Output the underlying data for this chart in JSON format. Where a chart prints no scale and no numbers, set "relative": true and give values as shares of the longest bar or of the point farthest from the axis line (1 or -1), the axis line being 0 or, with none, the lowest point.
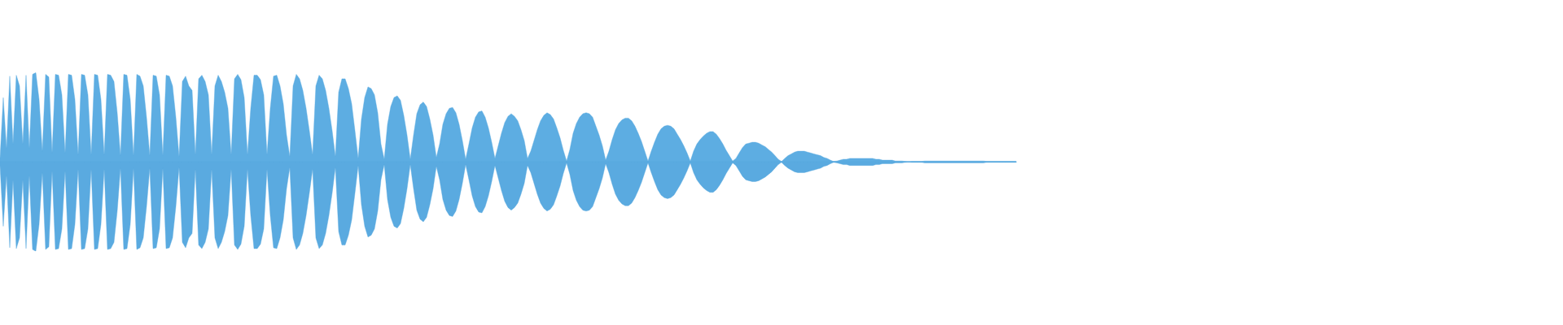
{
  "chart_data": {
    "type": "area",
    "relative": true,
    "categories": [
      null,
      null,
      null,
      null,
      null,
      null,
      null,
      null,
      null,
      null,
      null,
      null,
      null,
      null,
      null,
      null,
      null,
      null,
      null,
      null,
      null,
      null,
      null,
      null,
      null,
      null,
      null,
      null,
      null,
      null,
      null,
      null,
      null,
      null,
      null,
      null,
      null,
      null,
      null,
      null,
      null,
      null,
      null,
      null,
      null,
      null,
      null,
      null,
      null,
      null,
      null,
      null,
      null,
      null,
      null,
      null,
      null,
      null,
      null,
      null,
      null,
      null,
      null,
      null,
      null,
      null,
      null,
      null,
      null,
      null,
      null,
      null,
      null,
      null,
      null,
      null,
      null,
      null,
      null,
      null,
      null,
      null,
      null,
      null,
      null,
      null,
      null,
      null,
      null,
      null,
      null,
      null,
      null,
      null,
      null,
      null,
      null,
      null,
      null,
      null,
      null,
      null,
      null,
      null,
      null,
      null,
      null,
      null,
      null,
      null,
      null,
      null,
      null,
      null,
      null,
      null,
      null,
      null,
      null,
      null,
      null,
      null,
      null,
      null,
      null,
      null,
      null,
      null,
      null,
      null,
      null,
      null,
      null,
      null,
      null,
      null,
      null,
      null,
      null,
      null,
      null,
      null,
      null,
      null,
      null,
      null,
      null,
      null,
      null,
      null,
      null,
      null,
      null,
      null,
      null,
      null,
      null,
      null,
      null,
      null,
      null,
      null,
      null,
      null,
      null,
      null,
      null,
      null,
      null,
      null,
      null,
      null,
      null,
      null,
      null,
      null,
      null,
      null,
      null,
      null,
      null,
      null,
      null,
      null,
      null,
      null,
      null,
      null,
      null,
      null,
      null,
      null,
      null,
      null,
      null,
      null,
      null,
      null,
      null,
      null,
      null,
      null,
      null,
      null,
      null,
      null,
      null,
      null,
      null,
      null,
      null,
      null,
      null,
      null,
      null,
      null,
      null,
      null,
      null,
      null,
      null,
      null,
      null,
      null,
      null,
      null,
      null,
      null,
      null,
      null,
      null,
      null,
      null,
      null,
      null,
      null,
      null,
      null,
      null,
      null,
      null,
      null,
      null,
      null,
      null,
      null,
      null,
      null,
      null,
      null,
      null,
      null,
      null,
      null,
      null,
      null,
      null,
      null,
      null,
      null,
      null,
      null,
      null,
      null,
      null,
      null,
      null,
      null,
      null,
      null,
      null,
      null,
      null,
      null,
      null,
      null,
      null,
      null,
      null,
      null,
      null,
      null,
      null,
      null,
      null,
      null,
      null,
      null,
      null,
      null,
      null,
      null,
      null,
      null,
      null,
      null,
      null,
      null,
      null,
      null,
      null,
      null,
      null,
      null,
      null,
      null,
      null,
      null,
      null,
      null,
      null,
      null,
      null
    ],
    "series": [
      {
        "color": "#5dade2",
        "values": [
          0.04,
          0.72,
          0.15,
          0.96,
          0.2,
          0.97,
          0.85,
          0.2,
          0.97,
          0.15,
          0.98,
          1,
          0.7,
          0.12,
          0.98,
          0.95,
          0.1,
          0.98,
          0.97,
          0.75,
          0.1,
          0.98,
          0.97,
          0.7,
          0.08,
          0.98,
          0.97,
          0.75,
          0.08,
          0.98,
          0.97,
          0.7,
          0.08,
          0.98,
          0.97,
          0.9,
          0.55,
          0.07,
          0.98,
          0.97,
          0.7,
          0.07,
          0.98,
          0.96,
          0.85,
          0.5,
          0.07,
          0.97,
          0.96,
          0.75,
          0.07,
          0.97,
          0.96,
          0.85,
          0.5,
          0.06,
          0.9,
          0.96,
          0.85,
          0.8,
          0.08,
          0.93,
          0.97,
          0.9,
          0.75,
          0.08,
          0.85,
          0.97,
          0.9,
          0.78,
          0.6,
          0.08,
          0.93,
          0.98,
          0.92,
          0.72,
          0.08,
          0.6,
          0.97,
          0.97,
          0.92,
          0.75,
          0.08,
          0.6,
          0.96,
          0.97,
          0.85,
          0.65,
          0.3,
          0.06,
          0.85,
          0.98,
          0.93,
          0.8,
          0.6,
          0.35,
          0.08,
          0.85,
          0.97,
          0.93,
          0.8,
          0.6,
          0.35,
          0.06,
          0.78,
          0.93,
          0.93,
          0.82,
          0.65,
          0.35,
          0.04,
          0.48,
          0.72,
          0.84,
          0.82,
          0.75,
          0.55,
          0.2,
          0.03,
          0.42,
          0.62,
          0.72,
          0.74,
          0.69,
          0.52,
          0.3,
          0.03,
          0.3,
          0.54,
          0.64,
          0.67,
          0.62,
          0.48,
          0.3,
          0.05,
          0.2,
          0.42,
          0.54,
          0.6,
          0.61,
          0.55,
          0.42,
          0.24,
          0.03,
          0.2,
          0.38,
          0.5,
          0.56,
          0.57,
          0.5,
          0.38,
          0.22,
          0.04,
          0.18,
          0.32,
          0.44,
          0.51,
          0.54,
          0.51,
          0.46,
          0.36,
          0.24,
          0.04,
          0.12,
          0.24,
          0.36,
          0.46,
          0.52,
          0.55,
          0.53,
          0.48,
          0.38,
          0.27,
          0.13,
          0.01,
          0.14,
          0.32,
          0.43,
          0.5,
          0.54,
          0.55,
          0.54,
          0.5,
          0.4,
          0.3,
          0.18,
          0.02,
          0.12,
          0.25,
          0.36,
          0.43,
          0.47,
          0.49,
          0.49,
          0.46,
          0.4,
          0.32,
          0.23,
          0.12,
          0.01,
          0.12,
          0.22,
          0.31,
          0.37,
          0.4,
          0.41,
          0.4,
          0.37,
          0.31,
          0.25,
          0.18,
          0.1,
          0.01,
          0.12,
          0.2,
          0.25,
          0.29,
          0.32,
          0.34,
          0.34,
          0.31,
          0.26,
          0.2,
          0.13,
          0.07,
          0.01,
          0.04,
          0.1,
          0.16,
          0.2,
          0.21,
          0.22,
          0.22,
          0.21,
          0.19,
          0.17,
          0.14,
          0.11,
          0.07,
          0.03,
          0.005,
          0.04,
          0.07,
          0.09,
          0.11,
          0.12,
          0.12,
          0.12,
          0.11,
          0.1,
          0.09,
          0.08,
          0.07,
          0.05,
          0.04,
          0.02,
          0.005,
          0.01,
          0.02,
          0.03,
          0.03,
          0.04,
          0.04,
          0.04,
          0.04,
          0.04,
          0.04,
          0.04,
          0.04,
          0.03,
          0.03,
          0.02,
          0.02,
          0.02,
          0.02,
          0.01,
          0.01,
          0.01,
          0.005,
          0,
          0.005,
          0.005,
          0.005,
          0.005,
          0.01,
          0.01,
          0.01,
          0.01,
          0.01,
          0.01,
          0.01,
          0.01,
          0.01,
          0.01,
          0.01,
          0.01,
          0.01,
          0.01,
          0.01,
          0.01,
          0.01,
          0.01,
          0.01,
          0.005,
          0.005,
          0.005,
          0.005,
          0.005,
          0.005,
          0.005,
          0.005,
          0.005,
          0.005
        ]
      },
      {
        "color": "#5aaae0",
        "values": [
          -0.04,
          -0.72,
          -0.15,
          -0.96,
          -0.2,
          -0.97,
          -0.85,
          -0.2,
          -0.97,
          -0.15,
          -0.98,
          -1,
          -0.7,
          -0.12,
          -0.98,
          -0.95,
          -0.1,
          -0.98,
          -0.97,
          -0.75,
          -0.1,
          -0.98,
          -0.97,
          -0.7,
          -0.08,
          -0.98,
          -0.97,
          -0.75,
          -0.08,
          -0.98,
          -0.97,
          -0.7,
          -0.08,
          -0.98,
          -0.97,
          -0.9,
          -0.55,
          -0.07,
          -0.98,
          -0.97,
          -0.7,
          -0.07,
          -0.98,
          -0.96,
          -0.85,
          -0.5,
          -0.07,
          -0.97,
          -0.96,
          -0.75,
          -0.07,
          -0.97,
          -0.96,
          -0.85,
          -0.5,
          -0.06,
          -0.9,
          -0.96,
          -0.85,
          -0.8,
          -0.08,
          -0.93,
          -0.97,
          -0.9,
          -0.75,
          -0.08,
          -0.85,
          -0.97,
          -0.9,
          -0.78,
          -0.6,
          -0.08,
          -0.93,
          -0.98,
          -0.92,
          -0.72,
          -0.08,
          -0.6,
          -0.97,
          -0.97,
          -0.92,
          -0.75,
          -0.08,
          -0.6,
          -0.96,
          -0.97,
          -0.85,
          -0.65,
          -0.3,
          -0.06,
          -0.85,
          -0.98,
          -0.93,
          -0.8,
          -0.6,
          -0.35,
          -0.08,
          -0.85,
          -0.97,
          -0.93,
          -0.8,
          -0.6,
          -0.35,
          -0.06,
          -0.78,
          -0.93,
          -0.93,
          -0.82,
          -0.65,
          -0.35,
          -0.04,
          -0.48,
          -0.72,
          -0.84,
          -0.82,
          -0.75,
          -0.55,
          -0.2,
          -0.03,
          -0.42,
          -0.62,
          -0.72,
          -0.74,
          -0.69,
          -0.52,
          -0.3,
          -0.03,
          -0.3,
          -0.54,
          -0.64,
          -0.67,
          -0.62,
          -0.48,
          -0.3,
          -0.05,
          -0.2,
          -0.42,
          -0.54,
          -0.6,
          -0.61,
          -0.55,
          -0.42,
          -0.24,
          -0.03,
          -0.2,
          -0.38,
          -0.5,
          -0.56,
          -0.57,
          -0.5,
          -0.38,
          -0.22,
          -0.04,
          -0.18,
          -0.32,
          -0.44,
          -0.51,
          -0.54,
          -0.51,
          -0.46,
          -0.36,
          -0.24,
          -0.04,
          -0.12,
          -0.24,
          -0.36,
          -0.46,
          -0.52,
          -0.55,
          -0.53,
          -0.48,
          -0.38,
          -0.27,
          -0.13,
          -0.01,
          -0.14,
          -0.32,
          -0.43,
          -0.5,
          -0.54,
          -0.55,
          -0.54,
          -0.5,
          -0.4,
          -0.3,
          -0.18,
          -0.02,
          -0.12,
          -0.25,
          -0.36,
          -0.43,
          -0.47,
          -0.49,
          -0.49,
          -0.46,
          -0.4,
          -0.32,
          -0.23,
          -0.12,
          -0.01,
          -0.12,
          -0.22,
          -0.31,
          -0.37,
          -0.4,
          -0.41,
          -0.4,
          -0.37,
          -0.31,
          -0.25,
          -0.18,
          -0.1,
          -0.01,
          -0.12,
          -0.2,
          -0.25,
          -0.29,
          -0.32,
          -0.34,
          -0.34,
          -0.31,
          -0.26,
          -0.2,
          -0.13,
          -0.07,
          -0.01,
          -0.04,
          -0.1,
          -0.16,
          -0.2,
          -0.21,
          -0.22,
          -0.22,
          -0.21,
          -0.19,
          -0.17,
          -0.14,
          -0.11,
          -0.07,
          -0.03,
          -0.005,
          -0.04,
          -0.07,
          -0.09,
          -0.11,
          -0.12,
          -0.12,
          -0.12,
          -0.11,
          -0.1,
          -0.09,
          -0.08,
          -0.07,
          -0.05,
          -0.04,
          -0.02,
          -0.005,
          -0.01,
          -0.02,
          -0.03,
          -0.03,
          -0.04,
          -0.04,
          -0.04,
          -0.04,
          -0.04,
          -0.04,
          -0.04,
          -0.04,
          -0.03,
          -0.03,
          -0.02,
          -0.02,
          -0.02,
          -0.02,
          -0.01,
          -0.01,
          -0.01,
          -0.005,
          0,
          -0.005,
          -0.005,
          -0.005,
          -0.005,
          -0.01,
          -0.01,
          -0.01,
          -0.01,
          -0.01,
          -0.01,
          -0.01,
          -0.01,
          -0.01,
          -0.01,
          -0.01,
          -0.01,
          -0.01,
          -0.01,
          -0.01,
          -0.01,
          -0.01,
          -0.01,
          -0.01,
          -0.005,
          -0.005,
          -0.005,
          -0.005,
          -0.005,
          -0.005,
          -0.005,
          -0.005,
          -0.005,
          -0.005
        ]
      }
    ]
  }
}
